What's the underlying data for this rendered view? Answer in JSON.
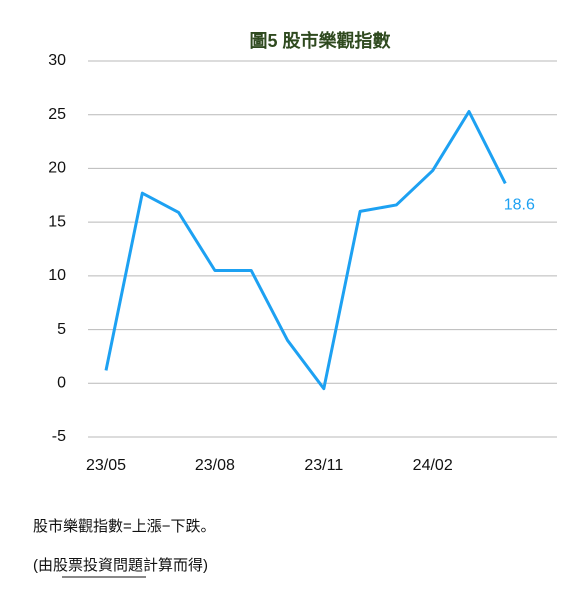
{
  "chart_data": {
    "type": "line",
    "title": "圖5 股市樂觀指數",
    "categories": [
      "23/05",
      null,
      null,
      "23/08",
      null,
      null,
      "23/11",
      null,
      null,
      "24/02",
      null,
      null
    ],
    "series": [
      {
        "name": "股市樂觀指數",
        "color": "#1da1f2",
        "values": [
          1.2,
          17.7,
          15.9,
          10.5,
          10.5,
          4.0,
          -0.5,
          16.0,
          16.6,
          19.8,
          25.3,
          18.6
        ],
        "value_labels": [
          null,
          null,
          null,
          null,
          null,
          null,
          null,
          null,
          null,
          null,
          null,
          "18.6"
        ]
      }
    ],
    "ylim": [
      -5,
      30
    ],
    "yticks": [
      -5,
      0,
      5,
      10,
      15,
      20,
      25,
      30
    ],
    "grid": true
  },
  "notes": [
    "股市樂觀指數=上漲−下跌。",
    "(由股票投資問題計算而得)"
  ]
}
